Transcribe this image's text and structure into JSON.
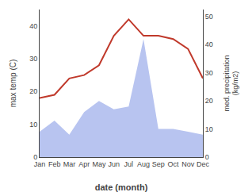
{
  "chart_data": {
    "type": "line",
    "categories": [
      "Jan",
      "Feb",
      "Mar",
      "Apr",
      "May",
      "Jun",
      "Jul",
      "Aug",
      "Sep",
      "Oct",
      "Nov",
      "Dec"
    ],
    "series": [
      {
        "type": "line",
        "color": "#c0392b",
        "values": [
          18,
          19,
          24,
          25,
          28,
          37,
          42,
          37,
          37,
          36,
          33,
          24
        ]
      },
      {
        "type": "area",
        "color": "#b8c4f0",
        "axis": "y2",
        "values": [
          9,
          13,
          8,
          16,
          20,
          17,
          18,
          42,
          10,
          10,
          9,
          8
        ]
      }
    ],
    "xlabel": "date (month)",
    "ylabel": "max temp (C)",
    "y2label": "med. precipitation\n(kg/m2)",
    "ylim": [
      0,
      45
    ],
    "yticks": [
      0,
      10,
      20,
      30,
      40
    ],
    "y2lim": [
      0,
      52.5
    ],
    "y2ticks": [
      0,
      10,
      20,
      30,
      40,
      50
    ],
    "grid": false
  }
}
